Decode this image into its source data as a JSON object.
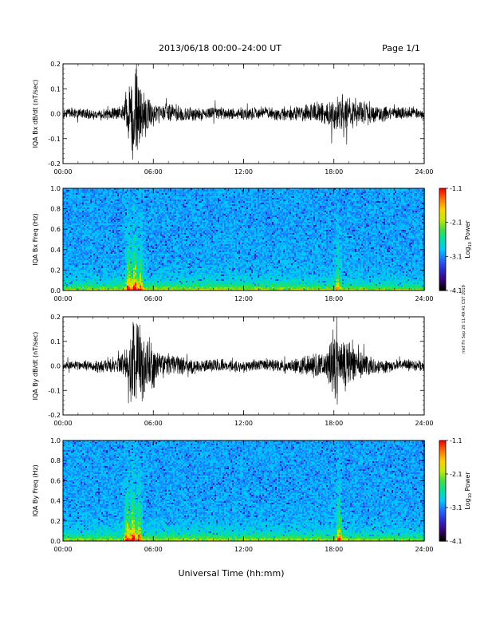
{
  "header": {
    "title": "2013/06/18  00:00–24:00 UT",
    "page": "Page 1/1"
  },
  "stamp": "mkf Fri Sep 20 11:49:41 CST 2019",
  "xaxis": {
    "label": "Universal Time (hh:mm)",
    "ticks": [
      "00:00",
      "06:00",
      "12:00",
      "18:00",
      "24:00"
    ],
    "range_hours": [
      0,
      24
    ]
  },
  "colorbar": {
    "label_main": "Log",
    "label_sub": "10",
    "label_tail": " Power",
    "ticks": [
      "-1.1",
      "-2.1",
      "-3.1",
      "-4.1"
    ],
    "range": [
      -4.1,
      -1.1
    ],
    "colors": [
      "#000000",
      "#3a007a",
      "#2a2ad0",
      "#1f6cff",
      "#00c8ff",
      "#00e0a0",
      "#40e040",
      "#c8e800",
      "#ffd000",
      "#ff7800",
      "#ff0000"
    ]
  },
  "chart_data": [
    {
      "type": "line",
      "ylabel": "IQA Bx dB/dt (nT/sec)",
      "ylim": [
        -0.2,
        0.2
      ],
      "yticks": [
        "0.2",
        "0.1",
        "0.0",
        "-0.1",
        "-0.2"
      ],
      "x_hours": [
        0,
        4.0,
        4.3,
        4.6,
        4.9,
        5.3,
        6.0,
        9.0,
        12.0,
        15.0,
        17.0,
        18.5,
        19.5,
        21.0,
        24.0
      ],
      "envelope": [
        0.02,
        0.03,
        0.1,
        0.2,
        0.2,
        0.12,
        0.05,
        0.03,
        0.025,
        0.03,
        0.05,
        0.08,
        0.06,
        0.04,
        0.02
      ]
    },
    {
      "type": "heatmap",
      "ylabel": "IQA Bx Freq (Hz)",
      "ylim": [
        0.0,
        1.0
      ],
      "yticks": [
        "1.0",
        "0.8",
        "0.6",
        "0.4",
        "0.2",
        "0.0"
      ],
      "bursts_hours": [
        4.3,
        4.7,
        5.1,
        18.2
      ],
      "burst_strength": [
        0.55,
        0.7,
        0.5,
        0.35
      ]
    },
    {
      "type": "line",
      "ylabel": "IQA By dB/dt (nT/sec)",
      "ylim": [
        -0.2,
        0.2
      ],
      "yticks": [
        "0.2",
        "0.1",
        "0.0",
        "-0.1",
        "-0.2"
      ],
      "x_hours": [
        0,
        3.5,
        4.2,
        4.6,
        5.0,
        5.5,
        6.5,
        9.0,
        12.0,
        15.0,
        17.5,
        18.0,
        18.6,
        19.5,
        21.0,
        24.0
      ],
      "envelope": [
        0.02,
        0.03,
        0.09,
        0.2,
        0.2,
        0.14,
        0.06,
        0.03,
        0.025,
        0.03,
        0.06,
        0.18,
        0.12,
        0.07,
        0.03,
        0.02
      ]
    },
    {
      "type": "heatmap",
      "ylabel": "IQA By Freq (Hz)",
      "ylim": [
        0.0,
        1.0
      ],
      "yticks": [
        "1.0",
        "0.8",
        "0.6",
        "0.4",
        "0.2",
        "0.0"
      ],
      "bursts_hours": [
        4.2,
        4.6,
        5.0,
        18.3
      ],
      "burst_strength": [
        0.6,
        0.75,
        0.55,
        0.45
      ]
    }
  ]
}
